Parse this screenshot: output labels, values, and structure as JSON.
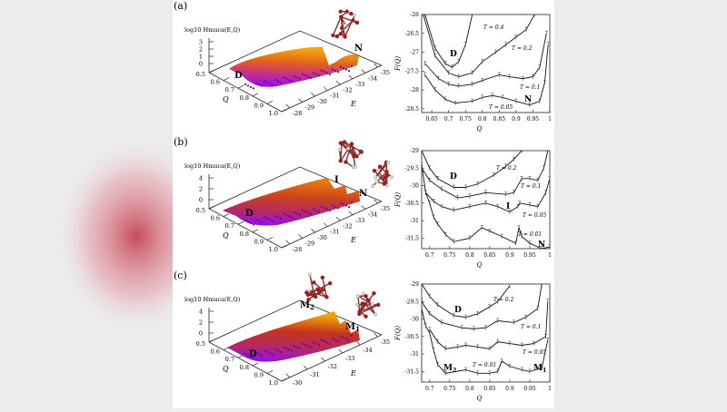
{
  "figure": {
    "panels": [
      {
        "label": "(a)",
        "surface": {
          "zlabel": "log10 Hmuca(E,Q)",
          "z_ticks": [
            "0",
            "1",
            "2",
            "3"
          ],
          "q_label": "Q",
          "q_ticks": [
            "0.5",
            "0.6",
            "0.7",
            "0.8",
            "0.9",
            "1.0"
          ],
          "e_label": "E",
          "e_ticks": [
            "-28",
            "-29",
            "-30",
            "-31",
            "-32",
            "-33",
            "-34",
            "-35"
          ],
          "annotations": [
            "D",
            "N"
          ],
          "colormap": [
            "#8a00ff",
            "#c0208a",
            "#e05a10",
            "#f5a000"
          ]
        }
      },
      {
        "label": "(b)",
        "surface": {
          "zlabel": "log10 Hmuca(E,Q)",
          "z_ticks": [
            "0",
            "2",
            "4"
          ],
          "q_label": "Q",
          "q_ticks": [
            "0.5",
            "0.6",
            "0.7",
            "0.8",
            "0.9",
            "1.0"
          ],
          "e_label": "E",
          "e_ticks": [
            "-28",
            "-29",
            "-30",
            "-31",
            "-32",
            "-33",
            "-34",
            "-35"
          ],
          "annotations": [
            "D",
            "I",
            "N"
          ],
          "colormap": [
            "#8a00ff",
            "#b01e5a",
            "#c83a10",
            "#e87000"
          ]
        }
      },
      {
        "label": "(c)",
        "surface": {
          "zlabel": "log10 Hmuca(E,Q)",
          "z_ticks": [
            "0",
            "2",
            "4"
          ],
          "q_label": "Q",
          "q_ticks": [
            "0.5",
            "0.6",
            "0.7",
            "0.8",
            "0.9",
            "1.0"
          ],
          "e_label": "E",
          "e_ticks": [
            "-30",
            "-31",
            "-32",
            "-33",
            "-34",
            "-35"
          ],
          "annotations": [
            "D",
            "M2",
            "M1"
          ],
          "colormap": [
            "#8a00ff",
            "#b01e5a",
            "#c02a10",
            "#f0a000"
          ]
        }
      }
    ]
  },
  "chart_data": [
    {
      "type": "line",
      "panel": "(a)",
      "xlabel": "Q",
      "ylabel": "F(Q)",
      "xlim": [
        0.62,
        1.0
      ],
      "ylim": [
        -28.6,
        -26
      ],
      "x_ticks": [
        "0.65",
        "0.7",
        "0.75",
        "0.8",
        "0.85",
        "0.9",
        "0.95",
        "1"
      ],
      "y_ticks": [
        "-26",
        "-26.5",
        "-27",
        "-27.5",
        "-28",
        "-28.5"
      ],
      "annotations": [
        "D",
        "N"
      ],
      "series": [
        {
          "name": "T = 0.4",
          "x": [
            0.63,
            0.66,
            0.69,
            0.71,
            0.73,
            0.75,
            0.77
          ],
          "y": [
            -26.0,
            -26.9,
            -27.3,
            -27.4,
            -27.25,
            -26.8,
            -26.0
          ]
        },
        {
          "name": "T = 0.2",
          "x": [
            0.625,
            0.66,
            0.7,
            0.73,
            0.77,
            0.8,
            0.84,
            0.87,
            0.9,
            0.93,
            0.955
          ],
          "y": [
            -26.0,
            -27.1,
            -27.55,
            -27.65,
            -27.55,
            -27.25,
            -27.0,
            -26.8,
            -26.6,
            -26.4,
            -26.0
          ]
        },
        {
          "name": "T = 0.1",
          "x": [
            0.63,
            0.67,
            0.7,
            0.73,
            0.77,
            0.8,
            0.85,
            0.88,
            0.92,
            0.95,
            0.97,
            0.99
          ],
          "y": [
            -27.3,
            -27.7,
            -27.85,
            -27.9,
            -27.85,
            -27.75,
            -27.6,
            -27.65,
            -27.7,
            -27.65,
            -27.4,
            -26.5
          ]
        },
        {
          "name": "T = 0.05",
          "x": [
            0.63,
            0.66,
            0.69,
            0.72,
            0.77,
            0.8,
            0.83,
            0.86,
            0.9,
            0.94,
            0.97,
            0.985,
            0.995
          ],
          "y": [
            -27.6,
            -28.0,
            -28.25,
            -28.35,
            -28.3,
            -28.2,
            -28.15,
            -28.2,
            -28.3,
            -28.4,
            -28.3,
            -27.8,
            -26.8
          ]
        }
      ]
    },
    {
      "type": "line",
      "panel": "(b)",
      "xlabel": "Q",
      "ylabel": "F(Q)",
      "xlim": [
        0.68,
        1.0
      ],
      "ylim": [
        -31.8,
        -29
      ],
      "x_ticks": [
        "0.7",
        "0.75",
        "0.8",
        "0.85",
        "0.9",
        "0.95",
        "1"
      ],
      "y_ticks": [
        "-29",
        "-29.5",
        "-30",
        "-30.5",
        "-31",
        "-31.5"
      ],
      "annotations": [
        "D",
        "I",
        "N"
      ],
      "series": [
        {
          "name": "T = 0.2",
          "x": [
            0.68,
            0.7,
            0.72,
            0.76,
            0.79,
            0.82,
            0.86,
            0.89,
            0.91,
            0.93
          ],
          "y": [
            -29.0,
            -29.5,
            -29.8,
            -30.05,
            -30.05,
            -29.95,
            -29.7,
            -29.45,
            -29.25,
            -29.0
          ]
        },
        {
          "name": "T = 0.1",
          "x": [
            0.68,
            0.7,
            0.73,
            0.77,
            0.8,
            0.84,
            0.89,
            0.91,
            0.93,
            0.95,
            0.97,
            0.985,
            0.995
          ],
          "y": [
            -29.5,
            -29.85,
            -30.1,
            -30.35,
            -30.3,
            -30.2,
            -30.25,
            -30.2,
            -29.8,
            -29.8,
            -29.85,
            -29.5,
            -29.0
          ]
        },
        {
          "name": "T = 0.05",
          "x": [
            0.69,
            0.71,
            0.73,
            0.76,
            0.8,
            0.84,
            0.87,
            0.9,
            0.92,
            0.925,
            0.95,
            0.97,
            0.99,
            1.0
          ],
          "y": [
            -30.2,
            -30.45,
            -30.6,
            -30.7,
            -30.6,
            -30.5,
            -30.6,
            -30.75,
            -30.6,
            -30.5,
            -30.55,
            -30.6,
            -30.2,
            -29.8
          ]
        },
        {
          "name": "T = 0.01",
          "x": [
            0.68,
            0.69,
            0.7,
            0.71,
            0.72,
            0.74,
            0.76,
            0.8,
            0.83,
            0.85,
            0.88,
            0.915,
            0.923,
            0.93,
            0.95,
            0.98,
            1.0
          ],
          "y": [
            -29.4,
            -30.2,
            -30.5,
            -30.9,
            -31.1,
            -31.4,
            -31.6,
            -31.5,
            -31.2,
            -31.3,
            -31.45,
            -31.65,
            -31.2,
            -31.45,
            -31.65,
            -31.8,
            -31.75
          ]
        }
      ]
    },
    {
      "type": "line",
      "panel": "(c)",
      "xlabel": "Q",
      "ylabel": "F(Q)",
      "xlim": [
        0.68,
        1.0
      ],
      "ylim": [
        -31.8,
        -29
      ],
      "x_ticks": [
        "0.7",
        "0.75",
        "0.8",
        "0.85",
        "0.9",
        "0.95",
        "1"
      ],
      "y_ticks": [
        "-29",
        "-29.5",
        "-30",
        "-30.5",
        "-31",
        "-31.5"
      ],
      "annotations": [
        "D",
        "M2",
        "M1"
      ],
      "series": [
        {
          "name": "T = 0.2",
          "x": [
            0.68,
            0.7,
            0.72,
            0.76,
            0.79,
            0.82,
            0.85,
            0.87,
            0.9
          ],
          "y": [
            -29.0,
            -29.35,
            -29.6,
            -29.9,
            -29.95,
            -29.85,
            -29.65,
            -29.5,
            -29.05
          ]
        },
        {
          "name": "T = 0.1",
          "x": [
            0.68,
            0.7,
            0.73,
            0.78,
            0.81,
            0.84,
            0.87,
            0.91,
            0.94,
            0.97,
            0.98
          ],
          "y": [
            -29.5,
            -29.85,
            -30.1,
            -30.25,
            -30.28,
            -30.25,
            -30.05,
            -30.1,
            -29.95,
            -29.7,
            -29.0
          ]
        },
        {
          "name": "T = 0.05",
          "x": [
            0.7,
            0.72,
            0.74,
            0.77,
            0.79,
            0.82,
            0.85,
            0.87,
            0.9,
            0.93,
            0.96,
            0.99,
            0.995
          ],
          "y": [
            -30.3,
            -30.65,
            -30.85,
            -30.8,
            -30.75,
            -30.8,
            -30.85,
            -30.65,
            -30.7,
            -30.75,
            -30.7,
            -30.5,
            -29.5
          ]
        },
        {
          "name": "T = 0.01",
          "x": [
            0.68,
            0.69,
            0.7,
            0.71,
            0.72,
            0.74,
            0.79,
            0.82,
            0.85,
            0.87,
            0.88,
            0.9,
            0.93,
            0.95,
            0.98,
            0.995
          ],
          "y": [
            -29.7,
            -30.2,
            -30.4,
            -30.9,
            -31.3,
            -31.55,
            -31.45,
            -31.55,
            -31.55,
            -31.5,
            -31.2,
            -31.35,
            -31.45,
            -31.5,
            -31.4,
            -30.6
          ]
        }
      ]
    }
  ]
}
